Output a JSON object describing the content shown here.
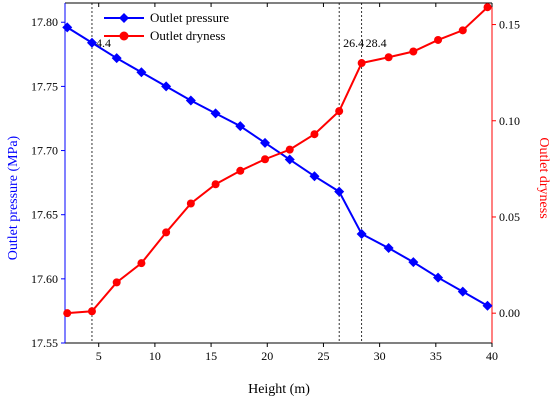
{
  "chart_data": {
    "type": "line",
    "xlabel": "Height (m)",
    "ylabel_left": "Outlet pressure (MPa)",
    "ylabel_right": "Outlet dryness",
    "xlim": [
      2,
      40
    ],
    "ylim_left": [
      17.55,
      17.815
    ],
    "ylim_right": [
      -0.0155,
      0.1612
    ],
    "xticks": [
      5,
      10,
      15,
      20,
      25,
      30,
      35,
      40
    ],
    "yticks_left": [
      17.55,
      17.6,
      17.65,
      17.7,
      17.75,
      17.8
    ],
    "yticks_right": [
      0.0,
      0.05,
      0.1,
      0.15
    ],
    "xtick_labels": [
      "5",
      "10",
      "15",
      "20",
      "25",
      "30",
      "35",
      "40"
    ],
    "ytick_labels_left": [
      "17.55",
      "17.60",
      "17.65",
      "17.70",
      "17.75",
      "17.80"
    ],
    "ytick_labels_right": [
      "0.00",
      "0.05",
      "0.10",
      "0.15"
    ],
    "series": [
      {
        "name": "Outlet pressure",
        "axis": "left",
        "color": "#0000ff",
        "marker": "diamond",
        "x": [
          2.2,
          4.4,
          6.6,
          8.8,
          11.0,
          13.2,
          15.4,
          17.6,
          19.8,
          22.0,
          24.2,
          26.4,
          28.4,
          30.8,
          33.0,
          35.2,
          37.4,
          39.6
        ],
        "y": [
          17.796,
          17.784,
          17.772,
          17.761,
          17.75,
          17.739,
          17.729,
          17.719,
          17.706,
          17.693,
          17.68,
          17.668,
          17.635,
          17.624,
          17.613,
          17.601,
          17.59,
          17.579
        ]
      },
      {
        "name": "Outlet dryness",
        "axis": "right",
        "color": "#ff0000",
        "marker": "circle",
        "x": [
          2.2,
          4.4,
          6.6,
          8.8,
          11.0,
          13.2,
          15.4,
          17.6,
          19.8,
          22.0,
          24.2,
          26.4,
          28.4,
          30.8,
          33.0,
          35.2,
          37.4,
          39.6
        ],
        "y": [
          0.0,
          0.001,
          0.016,
          0.026,
          0.042,
          0.057,
          0.067,
          0.074,
          0.08,
          0.085,
          0.093,
          0.105,
          0.13,
          0.133,
          0.136,
          0.142,
          0.147,
          0.159
        ]
      }
    ],
    "annotations": [
      {
        "x": 4.4,
        "label": "4.4"
      },
      {
        "x": 26.4,
        "label": "26.4"
      },
      {
        "x": 28.4,
        "label": "28.4"
      }
    ],
    "legend_placement": "top-left",
    "grid": false
  }
}
